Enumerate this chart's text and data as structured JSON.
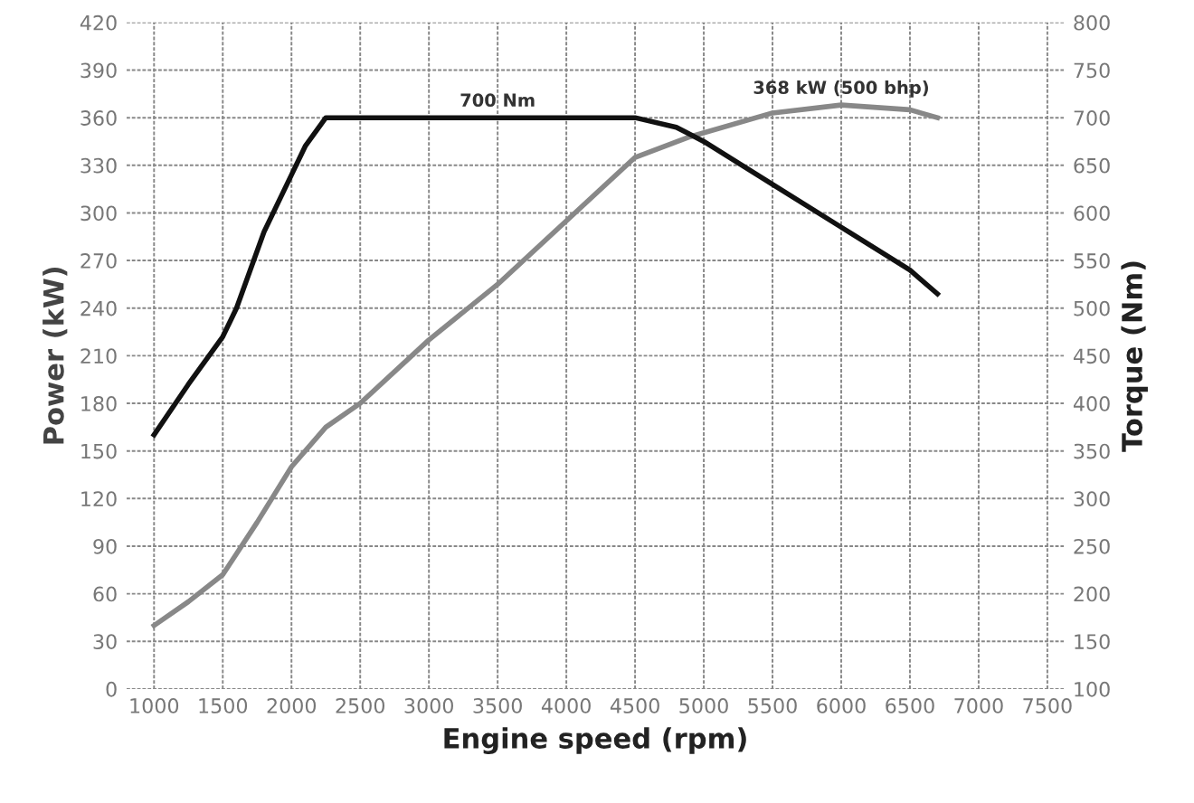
{
  "chart_data": {
    "type": "line",
    "xlabel": "Engine speed (rpm)",
    "ylabel": "Power (kW)",
    "y2label": "Torque (Nm)",
    "xlim": [
      800,
      7620
    ],
    "xticks": [
      1000,
      1500,
      2000,
      2500,
      3000,
      3500,
      4000,
      4500,
      5000,
      5500,
      6000,
      6500,
      7000,
      7500
    ],
    "ylim": [
      0,
      420
    ],
    "yticks": [
      0,
      30,
      60,
      90,
      120,
      150,
      180,
      210,
      240,
      270,
      300,
      330,
      360,
      390,
      420
    ],
    "y2lim": [
      100,
      800
    ],
    "y2ticks": [
      100,
      150,
      200,
      250,
      300,
      350,
      400,
      450,
      500,
      550,
      600,
      650,
      700,
      750,
      800
    ],
    "grid": true,
    "marker": "none",
    "line_style": "solid",
    "series": [
      {
        "color": "#111111",
        "axis": "y2",
        "x": [
          1000,
          1250,
          1500,
          1600,
          1800,
          2000,
          2100,
          2250,
          4500,
          4800,
          5000,
          5500,
          6000,
          6500,
          6700
        ],
        "values": [
          367,
          420,
          470,
          500,
          580,
          640,
          670,
          700,
          700,
          690,
          675,
          630,
          585,
          540,
          515
        ]
      },
      {
        "color": "#888888",
        "axis": "y",
        "x": [
          1000,
          1250,
          1500,
          1750,
          2000,
          2250,
          2500,
          3000,
          3500,
          4000,
          4500,
          4900,
          5500,
          6000,
          6500,
          6700
        ],
        "values": [
          40,
          55,
          72,
          105,
          140,
          165,
          180,
          220,
          255,
          295,
          335,
          348,
          363,
          368,
          365,
          360
        ]
      }
    ],
    "annotations": [
      {
        "text": "700 Nm",
        "x": 3500,
        "y": 360
      },
      {
        "text": "368 kW (500 bhp)",
        "x": 6000,
        "y": 368
      }
    ]
  }
}
